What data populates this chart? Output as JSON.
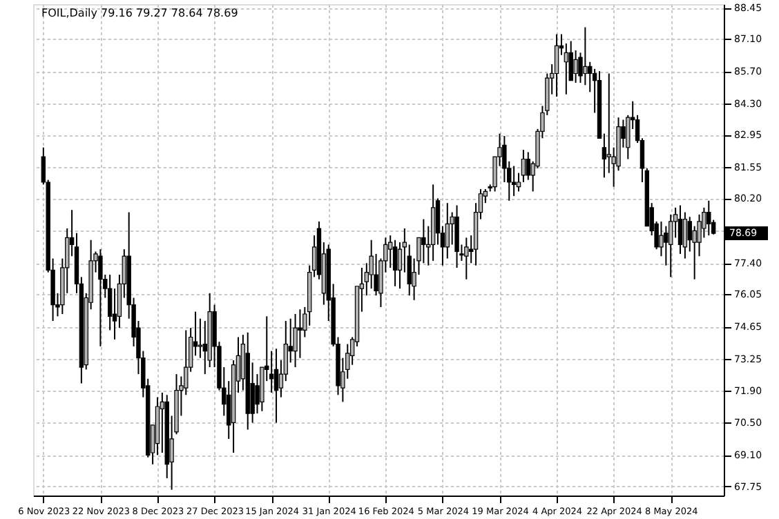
{
  "chart_data": {
    "type": "candlestick",
    "title": "FOIL,Daily  79.16 79.27 78.64 78.69",
    "categories": [
      "6 Nov 2023",
      null,
      null,
      null,
      null,
      null,
      null,
      null,
      null,
      null,
      null,
      null,
      "22 Nov 2023",
      null,
      null,
      null,
      null,
      null,
      null,
      null,
      null,
      null,
      null,
      null,
      "8 Dec 2023",
      null,
      null,
      null,
      null,
      null,
      null,
      null,
      null,
      null,
      null,
      null,
      "27 Dec 2023",
      null,
      null,
      null,
      null,
      null,
      null,
      null,
      null,
      null,
      null,
      null,
      "15 Jan 2024",
      null,
      null,
      null,
      null,
      null,
      null,
      null,
      null,
      null,
      null,
      null,
      "31 Jan 2024",
      null,
      null,
      null,
      null,
      null,
      null,
      null,
      null,
      null,
      null,
      null,
      "16 Feb 2024",
      null,
      null,
      null,
      null,
      null,
      null,
      null,
      null,
      null,
      null,
      null,
      "5 Mar 2024",
      null,
      null,
      null,
      null,
      null,
      null,
      null,
      null,
      null,
      null,
      null,
      "19 Mar 2024",
      null,
      null,
      null,
      null,
      null,
      null,
      null,
      null,
      null,
      null,
      null,
      "4 Apr 2024",
      null,
      null,
      null,
      null,
      null,
      null,
      null,
      null,
      null,
      null,
      null,
      "22 Apr 2024",
      null,
      null,
      null,
      null,
      null,
      null,
      null,
      null,
      null,
      null,
      null,
      "8 May 2024",
      null,
      null,
      null,
      null,
      null,
      null,
      null,
      null,
      null
    ],
    "ohlc": [
      [
        82.0,
        82.4,
        80.8,
        80.9
      ],
      [
        80.9,
        81.0,
        77.0,
        77.1
      ],
      [
        77.1,
        77.6,
        74.9,
        75.6
      ],
      [
        75.6,
        76.1,
        75.1,
        75.5
      ],
      [
        75.6,
        77.6,
        75.2,
        77.2
      ],
      [
        77.2,
        78.9,
        76.1,
        78.5
      ],
      [
        78.5,
        79.7,
        77.7,
        78.2
      ],
      [
        78.1,
        78.7,
        76.1,
        76.5
      ],
      [
        76.5,
        76.8,
        72.2,
        72.9
      ],
      [
        73.0,
        76.1,
        72.8,
        75.9
      ],
      [
        75.7,
        78.4,
        75.4,
        77.5
      ],
      [
        77.5,
        77.9,
        77.0,
        77.8
      ],
      [
        77.7,
        78.0,
        73.8,
        76.7
      ],
      [
        76.7,
        76.9,
        75.9,
        76.3
      ],
      [
        76.3,
        76.9,
        74.5,
        75.1
      ],
      [
        75.2,
        76.3,
        74.1,
        74.9
      ],
      [
        75.1,
        76.9,
        74.6,
        76.5
      ],
      [
        76.5,
        78.0,
        75.9,
        77.7
      ],
      [
        77.7,
        79.6,
        75.0,
        75.6
      ],
      [
        75.6,
        75.9,
        73.8,
        74.2
      ],
      [
        74.6,
        74.9,
        72.6,
        73.3
      ],
      [
        73.3,
        73.6,
        71.6,
        72.0
      ],
      [
        72.1,
        72.4,
        69.0,
        69.1
      ],
      [
        69.2,
        70.4,
        68.7,
        70.4
      ],
      [
        69.6,
        71.6,
        69.1,
        71.2
      ],
      [
        71.1,
        71.8,
        69.2,
        71.4
      ],
      [
        71.4,
        71.7,
        68.1,
        68.7
      ],
      [
        68.8,
        70.8,
        67.6,
        69.8
      ],
      [
        70.1,
        72.6,
        70.0,
        71.9
      ],
      [
        71.9,
        72.5,
        70.8,
        72.1
      ],
      [
        72.0,
        74.5,
        71.7,
        72.9
      ],
      [
        72.9,
        74.6,
        72.7,
        74.2
      ],
      [
        74.0,
        75.3,
        73.4,
        73.8
      ],
      [
        73.8,
        75.0,
        73.3,
        73.85
      ],
      [
        73.9,
        74.9,
        72.6,
        73.6
      ],
      [
        73.2,
        76.1,
        72.9,
        75.3
      ],
      [
        75.3,
        75.6,
        72.9,
        73.8
      ],
      [
        73.8,
        74.0,
        71.9,
        72.0
      ],
      [
        72.0,
        72.9,
        70.8,
        71.3
      ],
      [
        71.7,
        72.3,
        69.8,
        70.4
      ],
      [
        70.5,
        73.2,
        69.2,
        73.0
      ],
      [
        72.3,
        74.2,
        71.8,
        73.4
      ],
      [
        72.4,
        74.3,
        71.9,
        73.9
      ],
      [
        73.5,
        74.4,
        70.2,
        70.9
      ],
      [
        72.2,
        73.1,
        70.5,
        70.9
      ],
      [
        72.1,
        72.6,
        70.9,
        71.3
      ],
      [
        71.4,
        72.9,
        71.0,
        72.9
      ],
      [
        72.95,
        75.1,
        72.3,
        72.8
      ],
      [
        72.6,
        73.6,
        71.8,
        72.4
      ],
      [
        72.8,
        73.7,
        70.5,
        71.9
      ],
      [
        72.0,
        73.2,
        71.6,
        72.6
      ],
      [
        72.6,
        74.9,
        72.3,
        73.9
      ],
      [
        73.8,
        75.0,
        73.1,
        73.6
      ],
      [
        73.6,
        75.2,
        72.9,
        74.6
      ],
      [
        74.6,
        75.4,
        73.3,
        74.5
      ],
      [
        74.5,
        75.5,
        74.2,
        75.2
      ],
      [
        75.3,
        77.3,
        74.7,
        77.0
      ],
      [
        77.1,
        78.6,
        76.8,
        78.1
      ],
      [
        78.9,
        79.2,
        76.7,
        76.9
      ],
      [
        76.1,
        78.3,
        75.6,
        77.8
      ],
      [
        78.0,
        78.2,
        74.9,
        75.8
      ],
      [
        75.9,
        76.5,
        73.8,
        73.9
      ],
      [
        73.9,
        74.2,
        71.7,
        72.1
      ],
      [
        72.0,
        73.3,
        71.4,
        72.7
      ],
      [
        72.8,
        73.9,
        72.4,
        73.5
      ],
      [
        73.4,
        74.2,
        73.0,
        74.1
      ],
      [
        74.0,
        76.4,
        73.8,
        76.4
      ],
      [
        76.3,
        77.2,
        75.3,
        76.5
      ],
      [
        76.6,
        77.4,
        76.0,
        77.0
      ],
      [
        76.9,
        78.4,
        76.3,
        77.7
      ],
      [
        76.9,
        77.8,
        76.0,
        76.2
      ],
      [
        76.1,
        77.6,
        75.5,
        77.5
      ],
      [
        77.5,
        78.5,
        77.0,
        78.2
      ],
      [
        78.0,
        78.6,
        77.2,
        78.3
      ],
      [
        78.1,
        78.4,
        76.4,
        77.1
      ],
      [
        77.1,
        78.3,
        76.3,
        78.0
      ],
      [
        78.1,
        78.9,
        77.0,
        78.3
      ],
      [
        77.7,
        78.2,
        76.0,
        76.5
      ],
      [
        76.4,
        77.6,
        75.8,
        77.0
      ],
      [
        77.5,
        78.5,
        76.9,
        78.5
      ],
      [
        78.5,
        79.3,
        77.4,
        78.2
      ],
      [
        78.1,
        79.0,
        77.3,
        78.2
      ],
      [
        78.2,
        80.8,
        77.5,
        79.8
      ],
      [
        80.1,
        80.2,
        78.2,
        78.7
      ],
      [
        78.7,
        79.0,
        77.3,
        78.1
      ],
      [
        78.1,
        80.0,
        77.6,
        79.1
      ],
      [
        79.1,
        79.6,
        78.2,
        79.4
      ],
      [
        79.4,
        79.9,
        77.2,
        77.9
      ],
      [
        77.8,
        78.2,
        77.5,
        77.75
      ],
      [
        77.7,
        78.5,
        76.7,
        78.1
      ],
      [
        78.0,
        78.6,
        77.4,
        77.9
      ],
      [
        78.0,
        80.0,
        77.3,
        79.6
      ],
      [
        79.6,
        80.6,
        79.3,
        80.4
      ],
      [
        80.3,
        80.6,
        80.0,
        80.5
      ],
      [
        80.7,
        80.8,
        80.5,
        80.65
      ],
      [
        80.7,
        82.0,
        80.5,
        82.0
      ],
      [
        82.0,
        83.0,
        81.6,
        82.4
      ],
      [
        82.5,
        82.9,
        80.9,
        81.5
      ],
      [
        81.5,
        81.8,
        80.1,
        80.9
      ],
      [
        80.9,
        81.6,
        80.3,
        80.8
      ],
      [
        80.7,
        81.3,
        80.5,
        80.9
      ],
      [
        81.2,
        82.3,
        80.9,
        81.9
      ],
      [
        81.9,
        82.2,
        81.0,
        81.2
      ],
      [
        81.2,
        81.8,
        80.5,
        81.7
      ],
      [
        81.6,
        83.2,
        81.5,
        83.1
      ],
      [
        83.1,
        84.2,
        82.8,
        83.9
      ],
      [
        84.0,
        85.6,
        83.8,
        85.4
      ],
      [
        85.4,
        86.0,
        84.7,
        85.6
      ],
      [
        85.6,
        87.3,
        84.6,
        86.8
      ],
      [
        86.8,
        87.3,
        86.4,
        86.7
      ],
      [
        86.1,
        86.9,
        84.7,
        86.5
      ],
      [
        86.5,
        87.0,
        85.3,
        85.3
      ],
      [
        85.6,
        86.6,
        85.2,
        86.2
      ],
      [
        86.3,
        86.5,
        85.2,
        85.5
      ],
      [
        85.6,
        87.6,
        85.1,
        85.9
      ],
      [
        85.9,
        86.1,
        84.8,
        85.6
      ],
      [
        85.6,
        85.8,
        83.9,
        85.3
      ],
      [
        85.3,
        85.7,
        82.8,
        82.8
      ],
      [
        82.4,
        83.0,
        81.1,
        81.9
      ],
      [
        82.0,
        85.6,
        81.3,
        82.1
      ],
      [
        81.7,
        82.4,
        80.7,
        82.0
      ],
      [
        81.6,
        83.7,
        81.4,
        83.3
      ],
      [
        83.3,
        83.6,
        82.4,
        82.8
      ],
      [
        82.4,
        83.8,
        81.9,
        83.7
      ],
      [
        83.7,
        84.4,
        83.2,
        83.6
      ],
      [
        83.6,
        83.8,
        82.6,
        82.7
      ],
      [
        82.7,
        82.8,
        80.9,
        81.5
      ],
      [
        81.4,
        81.5,
        79.0,
        79.0
      ],
      [
        79.8,
        80.0,
        78.6,
        78.8
      ],
      [
        79.1,
        79.2,
        78.0,
        78.1
      ],
      [
        78.1,
        79.2,
        77.7,
        78.6
      ],
      [
        78.7,
        79.0,
        77.3,
        78.3
      ],
      [
        78.2,
        79.5,
        76.8,
        79.2
      ],
      [
        79.2,
        79.8,
        78.5,
        79.5
      ],
      [
        79.3,
        79.9,
        77.8,
        78.2
      ],
      [
        78.1,
        79.6,
        77.6,
        79.3
      ],
      [
        79.2,
        79.4,
        77.9,
        78.4
      ],
      [
        78.3,
        79.0,
        76.7,
        78.8
      ],
      [
        78.3,
        79.5,
        77.7,
        79.2
      ],
      [
        78.9,
        79.8,
        78.5,
        79.6
      ],
      [
        79.6,
        80.1,
        78.6,
        79.1
      ],
      [
        79.16,
        79.27,
        78.64,
        78.69
      ]
    ],
    "colors": [
      "#000000",
      "#000000",
      "#000000",
      "#000000",
      "#b4b4b4",
      "#b4b4b4",
      "#000000",
      "#000000",
      "#000000",
      "#b4b4b4",
      "#b4b4b4",
      "#b4b4b4",
      "#000000",
      "#000000",
      "#000000",
      "#000000",
      "#b4b4b4",
      "#b4b4b4",
      "#000000",
      "#000000",
      "#000000",
      "#000000",
      "#000000",
      "#b4b4b4",
      "#b4b4b4",
      "#b4b4b4",
      "#000000",
      "#b4b4b4",
      "#b4b4b4",
      "#b4b4b4",
      "#b4b4b4",
      "#b4b4b4",
      "#000000",
      "#b4b4b4",
      "#000000",
      "#b4b4b4",
      "#000000",
      "#000000",
      "#000000",
      "#000000",
      "#b4b4b4",
      "#b4b4b4",
      "#b4b4b4",
      "#000000",
      "#000000",
      "#000000",
      "#b4b4b4",
      "#000000",
      "#000000",
      "#000000",
      "#b4b4b4",
      "#b4b4b4",
      "#000000",
      "#b4b4b4",
      "#000000",
      "#b4b4b4",
      "#b4b4b4",
      "#b4b4b4",
      "#000000",
      "#b4b4b4",
      "#000000",
      "#000000",
      "#000000",
      "#b4b4b4",
      "#b4b4b4",
      "#b4b4b4",
      "#b4b4b4",
      "#b4b4b4",
      "#b4b4b4",
      "#b4b4b4",
      "#000000",
      "#b4b4b4",
      "#b4b4b4",
      "#b4b4b4",
      "#000000",
      "#b4b4b4",
      "#b4b4b4",
      "#000000",
      "#b4b4b4",
      "#b4b4b4",
      "#000000",
      "#b4b4b4",
      "#b4b4b4",
      "#000000",
      "#000000",
      "#b4b4b4",
      "#b4b4b4",
      "#000000",
      "#000000",
      "#b4b4b4",
      "#000000",
      "#b4b4b4",
      "#b4b4b4",
      "#b4b4b4",
      "#000000",
      "#b4b4b4",
      "#b4b4b4",
      "#000000",
      "#000000",
      "#000000",
      "#b4b4b4",
      "#b4b4b4",
      "#000000",
      "#b4b4b4",
      "#b4b4b4",
      "#b4b4b4",
      "#b4b4b4",
      "#b4b4b4",
      "#b4b4b4",
      "#000000",
      "#b4b4b4",
      "#000000",
      "#b4b4b4",
      "#000000",
      "#b4b4b4",
      "#000000",
      "#000000",
      "#000000",
      "#000000",
      "#b4b4b4",
      "#b4b4b4",
      "#b4b4b4",
      "#000000",
      "#b4b4b4",
      "#000000",
      "#000000",
      "#000000",
      "#000000",
      "#000000",
      "#000000",
      "#b4b4b4",
      "#000000",
      "#b4b4b4",
      "#b4b4b4",
      "#000000",
      "#b4b4b4",
      "#000000",
      "#b4b4b4",
      "#b4b4b4",
      "#b4b4b4",
      "#000000",
      "#000000"
    ],
    "ylim": [
      67.35,
      88.6
    ],
    "yticks": [
      {
        "value": 88.45,
        "label": "88.45"
      },
      {
        "value": 87.1,
        "label": "87.10"
      },
      {
        "value": 85.7,
        "label": "85.70"
      },
      {
        "value": 84.3,
        "label": "84.30"
      },
      {
        "value": 82.95,
        "label": "82.95"
      },
      {
        "value": 81.55,
        "label": "81.55"
      },
      {
        "value": 80.2,
        "label": "80.20"
      },
      {
        "value": 78.8,
        "label": null
      },
      {
        "value": 77.4,
        "label": "77.40"
      },
      {
        "value": 76.05,
        "label": "76.05"
      },
      {
        "value": 74.65,
        "label": "74.65"
      },
      {
        "value": 73.25,
        "label": "73.25"
      },
      {
        "value": 71.9,
        "label": "71.90"
      },
      {
        "value": 70.5,
        "label": "70.50"
      },
      {
        "value": 69.1,
        "label": "69.10"
      },
      {
        "value": 67.75,
        "label": "67.75"
      }
    ],
    "ref_lines": [
      {
        "axis": "y",
        "value": 78.69,
        "label": "78.69",
        "color": "#000000"
      }
    ],
    "grid": true
  }
}
